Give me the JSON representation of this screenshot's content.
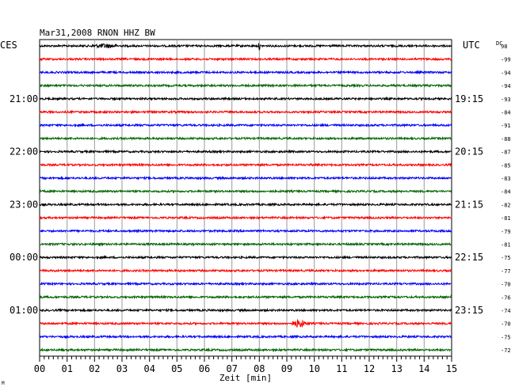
{
  "chart_data": {
    "type": "line",
    "title": "Mar31,2008   RNON HHZ BW",
    "left_header": "CES",
    "right_header": "UTC",
    "dc_header": "DC",
    "xlabel": "Zeit [min]",
    "xlim": [
      0,
      15
    ],
    "x_ticks": [
      "00",
      "01",
      "02",
      "03",
      "04",
      "05",
      "06",
      "07",
      "08",
      "09",
      "10",
      "11",
      "12",
      "13",
      "14",
      "15"
    ],
    "trace_colors": [
      "#000000",
      "#ff0000",
      "#0000ff",
      "#006400"
    ],
    "left_time_labels": [
      "21:00",
      "22:00",
      "23:00",
      "00:00",
      "01:00"
    ],
    "right_time_labels": [
      "19:15",
      "20:15",
      "21:15",
      "22:15",
      "23:15"
    ],
    "time_label_rows": [
      4,
      8,
      12,
      16,
      20
    ],
    "dc_offsets": [
      "98",
      "-99",
      "-94",
      "-94",
      "-93",
      "-84",
      "-91",
      "-88",
      "-87",
      "-85",
      "-83",
      "-84",
      "-82",
      "-81",
      "-79",
      "-81",
      "-75",
      "-77",
      "-70",
      "-76",
      "-74",
      "-70",
      "-75",
      "-72"
    ],
    "events": [
      {
        "row": 0,
        "x_start": 1.8,
        "x_end": 3.0,
        "amplitude": 2.2
      },
      {
        "row": 0,
        "x_start": 7.95,
        "x_end": 8.05,
        "amplitude": 4.5
      },
      {
        "row": 21,
        "x_start": 9.1,
        "x_end": 9.8,
        "amplitude": 5.0
      }
    ],
    "grid": true
  },
  "footer_mark": "M"
}
